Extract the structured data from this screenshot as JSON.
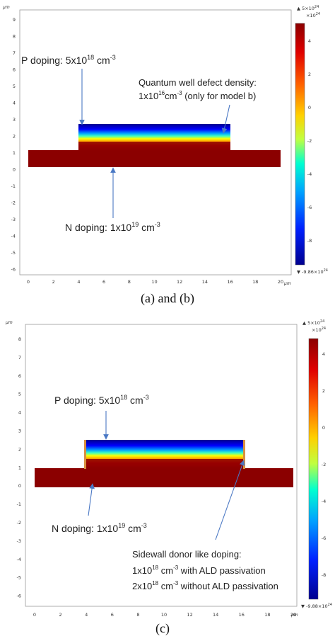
{
  "panels": [
    {
      "id": "ab",
      "caption": "(a) and (b)",
      "axis_unit": "µm",
      "x_ticks": [
        "0",
        "2",
        "4",
        "6",
        "8",
        "10",
        "12",
        "14",
        "16",
        "18",
        "20"
      ],
      "y_ticks": [
        "9",
        "8",
        "7",
        "6",
        "5",
        "4",
        "3",
        "2",
        "1",
        "0",
        "-1",
        "-2",
        "-3",
        "-4",
        "-5",
        "-6"
      ],
      "colorbar": {
        "max_label": "▲ 5×10",
        "max_exp": "24",
        "scale_label": "×10",
        "scale_exp": "24",
        "ticks": [
          "4",
          "2",
          "0",
          "-2",
          "-4",
          "-6",
          "-8"
        ],
        "min_label": "▼ -9.86×10",
        "min_exp": "24"
      },
      "annotations": {
        "p_doping": {
          "text": "P doping: 5x10",
          "sup": "18",
          "unit": " cm",
          "unit_sup": "-3"
        },
        "qw": {
          "line1": "Quantum well defect density:",
          "line2_a": "1x10",
          "line2_sup": "16",
          "line2_b": "cm",
          "line2_sup2": "-3",
          "line2_c": " (only for model b)"
        },
        "n_doping": {
          "text": "N doping: 1x10",
          "sup": "19",
          "unit": " cm",
          "unit_sup": "-3"
        }
      }
    },
    {
      "id": "c",
      "caption": "(c)",
      "axis_unit": "µm",
      "x_ticks": [
        "0",
        "2",
        "4",
        "6",
        "8",
        "10",
        "12",
        "14",
        "16",
        "18",
        "20"
      ],
      "y_ticks": [
        "8",
        "7",
        "6",
        "5",
        "4",
        "3",
        "2",
        "1",
        "0",
        "-1",
        "-2",
        "-3",
        "-4",
        "-5",
        "-6"
      ],
      "colorbar": {
        "max_label": "▲ 5×10",
        "max_exp": "24",
        "scale_label": "×10",
        "scale_exp": "24",
        "ticks": [
          "4",
          "2",
          "0",
          "-2",
          "-4",
          "-6",
          "-8"
        ],
        "min_label": "▼ -9.88×10",
        "min_exp": "24"
      },
      "annotations": {
        "p_doping": {
          "text": "P doping: 5x10",
          "sup": "18",
          "unit": " cm",
          "unit_sup": "-3"
        },
        "n_doping": {
          "text": "N doping: 1x10",
          "sup": "19",
          "unit": " cm",
          "unit_sup": "-3"
        },
        "sidewall": {
          "line1": "Sidewall donor like doping:",
          "line2_a": "1x10",
          "line2_sup": "18",
          "line2_b": " cm",
          "line2_sup2": "-3",
          "line2_c": " with ALD passivation",
          "line3_a": "2x10",
          "line3_sup": "18",
          "line3_b": " cm",
          "line3_sup2": "-3",
          "line3_c": " without ALD passivation"
        }
      }
    }
  ],
  "colors": {
    "substrate": "#8b0000",
    "mesa_top": "#00008f",
    "arrow": "#4a78c4"
  }
}
